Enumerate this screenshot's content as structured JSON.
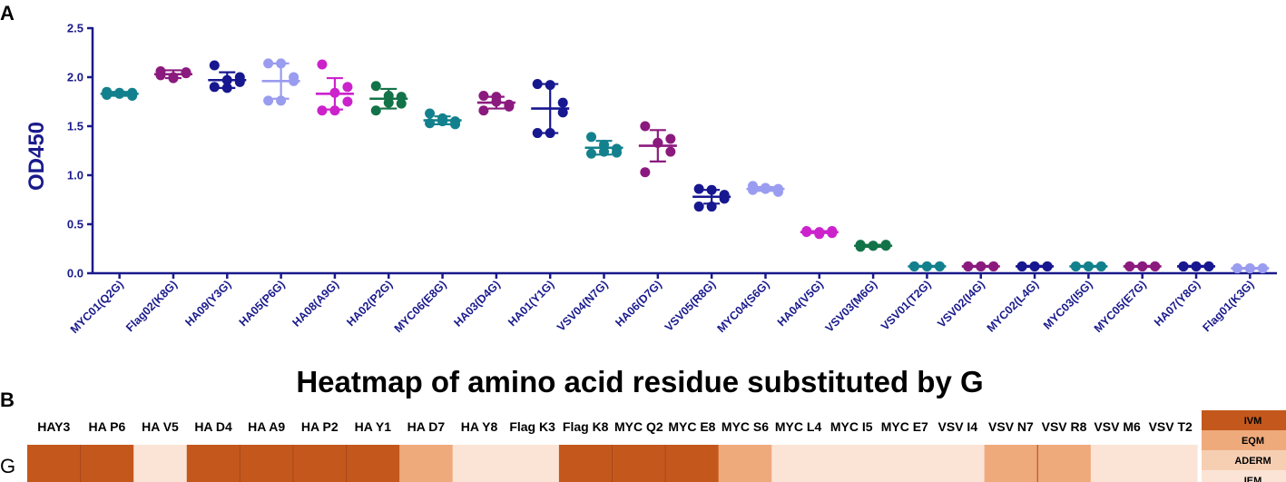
{
  "panels": {
    "a": "A",
    "b": "B"
  },
  "heatmap_title": "Heatmap of amino acid residue substituted by G",
  "chart_data": [
    {
      "type": "scatter",
      "ylabel": "OD450",
      "ylim": [
        0,
        2.5
      ],
      "yticks": [
        "0.0",
        "0.5",
        "1.0",
        "1.5",
        "2.0",
        "2.5"
      ],
      "categories": [
        "MYC01(Q2G)",
        "Flag02(K8G)",
        "HA09(Y3G)",
        "HA05(P6G)",
        "HA08(A9G)",
        "HA02(P2G)",
        "MYC06(E8G)",
        "HA03(D4G)",
        "HA01(Y1G)",
        "VSV04(N7G)",
        "HA06(D7G)",
        "VSV05(R8G)",
        "MYC04(S6G)",
        "HA04(V5G)",
        "VSV03(M6G)",
        "VSV01(T2G)",
        "VSV02(I4G)",
        "MYC02(L4G)",
        "MYC03(I5G)",
        "MYC05(E7G)",
        "HA07(Y8G)",
        "Flag01(K3G)"
      ],
      "colors": [
        "#12818d",
        "#8b1a7e",
        "#171790",
        "#9a9cf0",
        "#cc22cc",
        "#137348",
        "#12818d",
        "#8b1a7e",
        "#171790",
        "#12818d",
        "#8b1a7e",
        "#171790",
        "#9a9cf0",
        "#cc22cc",
        "#137348",
        "#12818d",
        "#8b1a7e",
        "#171790",
        "#12818d",
        "#8b1a7e",
        "#171790",
        "#9a9cf0"
      ],
      "means": [
        1.83,
        2.03,
        1.97,
        1.96,
        1.83,
        1.78,
        1.56,
        1.74,
        1.68,
        1.28,
        1.3,
        0.78,
        0.86,
        0.42,
        0.28,
        0.07,
        0.07,
        0.07,
        0.07,
        0.07,
        0.07,
        0.05
      ],
      "sds": [
        0.02,
        0.04,
        0.08,
        0.18,
        0.16,
        0.1,
        0.04,
        0.06,
        0.25,
        0.07,
        0.16,
        0.07,
        0.02,
        0.01,
        0.01,
        0.005,
        0.005,
        0.005,
        0.005,
        0.005,
        0.005,
        0.005
      ],
      "points": [
        [
          1.82,
          1.84,
          1.81,
          1.85,
          1.83,
          1.84
        ],
        [
          2.06,
          2.0,
          2.05,
          2.02,
          1.99,
          2.04
        ],
        [
          2.12,
          1.97,
          2.0,
          1.9,
          1.89,
          1.95
        ],
        [
          2.14,
          2.14,
          1.96,
          1.76,
          1.76,
          2.0
        ],
        [
          2.13,
          1.84,
          1.75,
          1.66,
          1.66,
          1.9
        ],
        [
          1.91,
          1.81,
          1.73,
          1.66,
          1.74,
          1.8
        ],
        [
          1.63,
          1.58,
          1.52,
          1.53,
          1.55,
          1.55
        ],
        [
          1.81,
          1.8,
          1.7,
          1.66,
          1.75,
          1.72
        ],
        [
          1.93,
          1.92,
          1.64,
          1.43,
          1.43,
          1.74
        ],
        [
          1.39,
          1.31,
          1.23,
          1.22,
          1.24,
          1.27
        ],
        [
          1.5,
          1.33,
          1.24,
          1.03,
          1.33,
          1.37
        ],
        [
          0.86,
          0.85,
          0.76,
          0.68,
          0.68,
          0.8
        ],
        [
          0.89,
          0.87,
          0.83,
          0.85,
          0.86,
          0.86
        ],
        [
          0.43,
          0.42,
          0.41,
          0.42,
          0.4,
          0.43
        ],
        [
          0.29,
          0.28,
          0.28,
          0.27,
          0.28,
          0.29
        ],
        [
          0.07,
          0.07,
          0.07,
          0.07,
          0.07,
          0.07
        ],
        [
          0.07,
          0.07,
          0.07,
          0.07,
          0.07,
          0.07
        ],
        [
          0.07,
          0.07,
          0.07,
          0.07,
          0.07,
          0.07
        ],
        [
          0.07,
          0.07,
          0.07,
          0.07,
          0.07,
          0.07
        ],
        [
          0.07,
          0.07,
          0.07,
          0.07,
          0.07,
          0.07
        ],
        [
          0.07,
          0.07,
          0.07,
          0.07,
          0.07,
          0.07
        ],
        [
          0.05,
          0.05,
          0.05,
          0.05,
          0.05,
          0.05
        ]
      ]
    },
    {
      "type": "heatmap",
      "row_label": "G",
      "columns": [
        "HAY3",
        "HA P6",
        "HA V5",
        "HA D4",
        "HA A9",
        "HA P2",
        "HA Y1",
        "HA D7",
        "HA Y8",
        "Flag K3",
        "Flag K8",
        "MYC Q2",
        "MYC E8",
        "MYC S6",
        "MYC L4",
        "MYC I5",
        "MYC E7",
        "VSV I4",
        "VSV N7",
        "VSV R8",
        "VSV M6",
        "VSV T2"
      ],
      "levels": [
        "IVM",
        "IVM",
        "IEM",
        "IVM",
        "IVM",
        "IVM",
        "IVM",
        "EQM",
        "IEM",
        "IEM",
        "IVM",
        "IVM",
        "IVM",
        "EQM",
        "IEM",
        "IEM",
        "IEM",
        "IEM",
        "EQM",
        "EQM",
        "IEM",
        "IEM"
      ],
      "legend": [
        {
          "label": "IVM",
          "color": "#c4581c"
        },
        {
          "label": "EQM",
          "color": "#efaa7c"
        },
        {
          "label": "ADERM",
          "color": "#f6cfb3"
        },
        {
          "label": "IEM",
          "color": "#fbe4d6"
        }
      ]
    }
  ]
}
